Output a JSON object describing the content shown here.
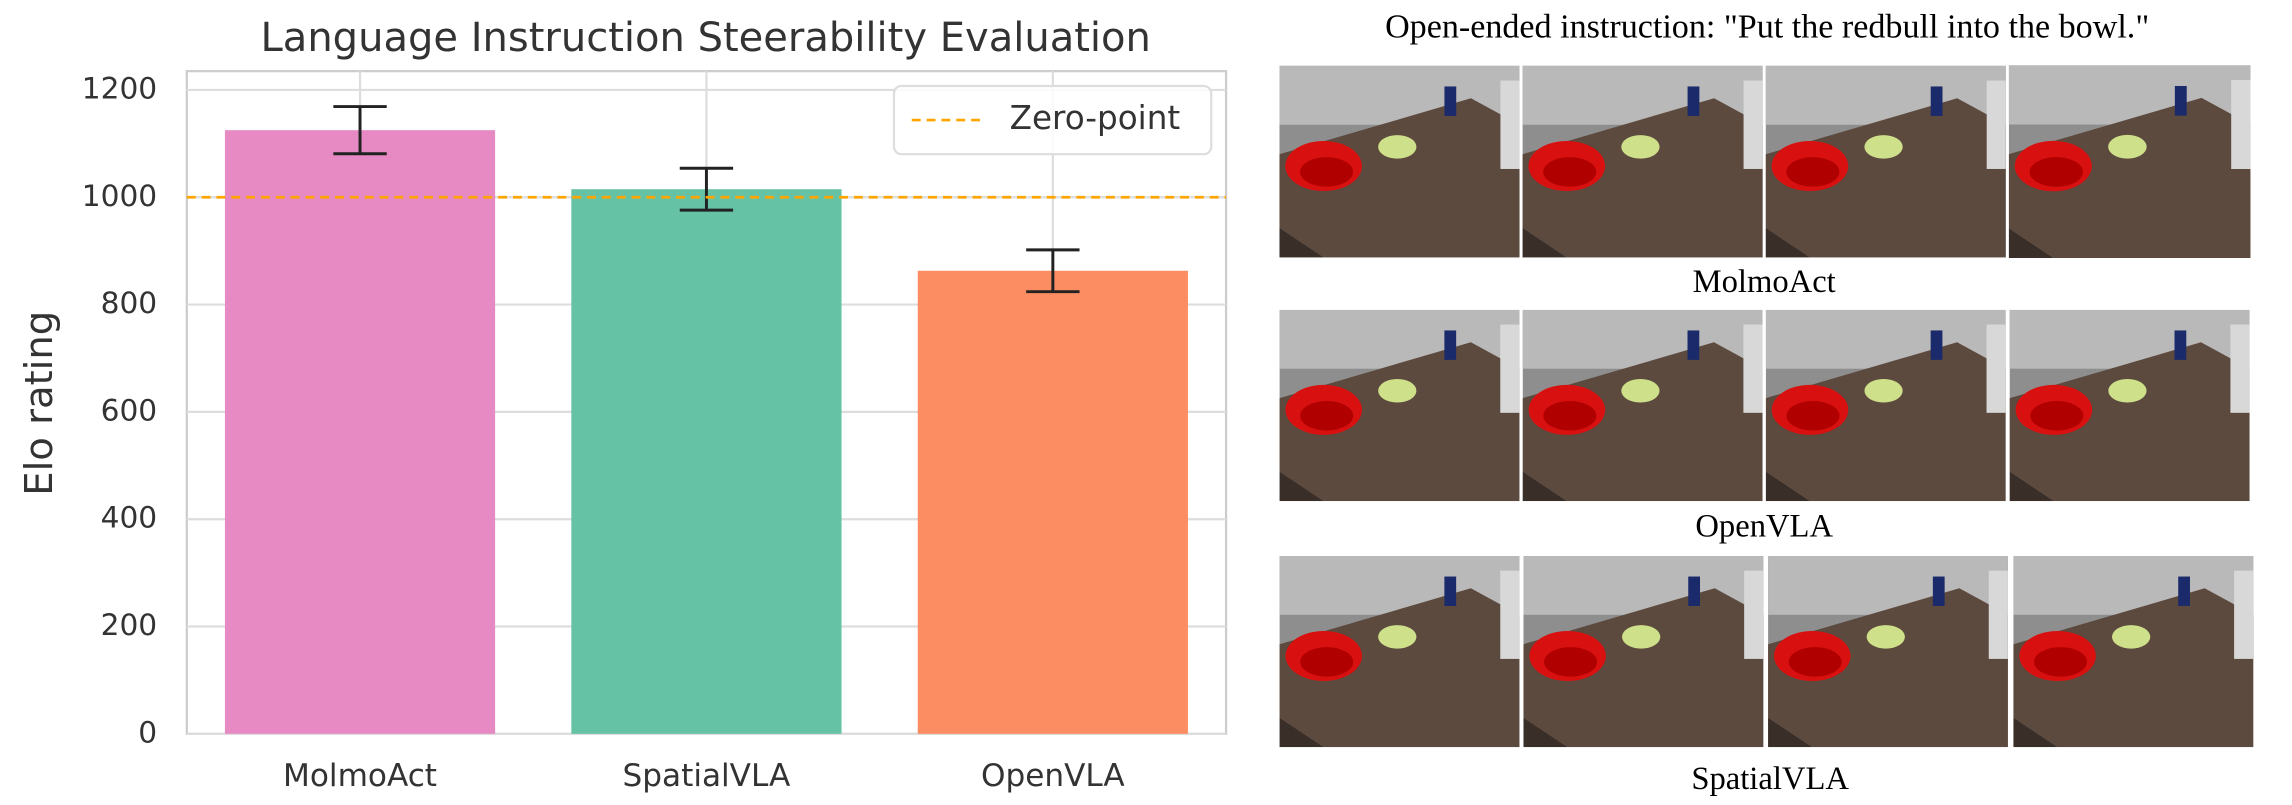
{
  "chart_data": {
    "type": "bar",
    "title": "Language Instruction Steerability Evaluation",
    "ylabel": "Elo rating",
    "categories": [
      "MolmoAct",
      "SpatialVLA",
      "OpenVLA"
    ],
    "values": [
      1125,
      1015,
      863
    ],
    "errors": [
      44,
      39,
      39
    ],
    "colors": [
      "#e78ac3",
      "#66c2a5",
      "#fc8d62"
    ],
    "ylim": [
      0,
      1235
    ],
    "yticks": [
      0,
      200,
      400,
      600,
      800,
      1000,
      1200
    ],
    "grid": true,
    "reference_line": {
      "value": 1000,
      "label": "Zero-point",
      "color": "#ffa500"
    },
    "legend": "upper right"
  },
  "image_panel": {
    "title": "Open-ended instruction: \"Put the redbull into the bowl.\"",
    "captions": [
      "MolmoAct",
      "OpenVLA",
      "SpatialVLA"
    ]
  }
}
